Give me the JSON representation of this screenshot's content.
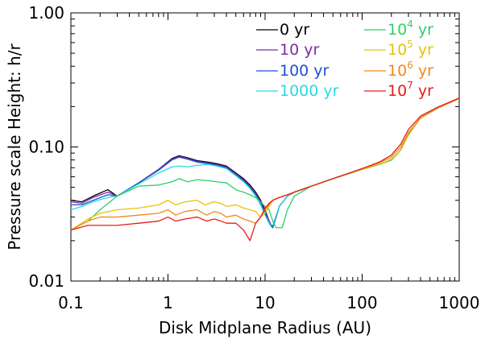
{
  "chart_data": {
    "type": "line",
    "title": "",
    "xlabel": "Disk Midplane Radius (AU)",
    "ylabel": "Pressure scale Height: h/r",
    "xscale": "log",
    "yscale": "log",
    "xlim": [
      0.1,
      1000
    ],
    "ylim": [
      0.01,
      1.0
    ],
    "x_ticks": [
      {
        "value": 0.1,
        "label": "0.1"
      },
      {
        "value": 1,
        "label": "1"
      },
      {
        "value": 10,
        "label": "10"
      },
      {
        "value": 100,
        "label": "100"
      },
      {
        "value": 1000,
        "label": "1000"
      }
    ],
    "y_ticks": [
      {
        "value": 0.01,
        "label": "0.01"
      },
      {
        "value": 0.1,
        "label": "0.10"
      },
      {
        "value": 1.0,
        "label": "1.00"
      }
    ],
    "grid": false,
    "legend_position": "top-right",
    "series": [
      {
        "name": "0 yr",
        "label_base": "0",
        "label_exp": "",
        "label_unit": " yr",
        "color": "#000000",
        "x": [
          0.1,
          0.13,
          0.17,
          0.24,
          0.3,
          0.5,
          0.8,
          1.1,
          1.3,
          1.6,
          2,
          2.6,
          3.2,
          4,
          5,
          6,
          7,
          8,
          9,
          10,
          11,
          12,
          14,
          17,
          20,
          30,
          50,
          100,
          150,
          200,
          250,
          300,
          400,
          600,
          1000
        ],
        "y": [
          0.04,
          0.039,
          0.043,
          0.048,
          0.043,
          0.054,
          0.068,
          0.082,
          0.086,
          0.083,
          0.079,
          0.077,
          0.075,
          0.072,
          0.064,
          0.058,
          0.052,
          0.046,
          0.04,
          0.034,
          0.028,
          0.025,
          0.036,
          0.043,
          0.046,
          0.051,
          0.058,
          0.068,
          0.074,
          0.08,
          0.095,
          0.125,
          0.165,
          0.195,
          0.23
        ]
      },
      {
        "name": "10 yr",
        "label_base": "10",
        "label_exp": "",
        "label_unit": " yr",
        "color": "#7b2ea0",
        "x": [
          0.1,
          0.13,
          0.17,
          0.24,
          0.3,
          0.5,
          0.8,
          1.1,
          1.3,
          1.6,
          2,
          2.6,
          3.2,
          4,
          5,
          6,
          7,
          8,
          9,
          10,
          11,
          12,
          14,
          17,
          20,
          30,
          50,
          100,
          150,
          200,
          250,
          300,
          400,
          600,
          1000
        ],
        "y": [
          0.039,
          0.038,
          0.042,
          0.046,
          0.043,
          0.054,
          0.068,
          0.081,
          0.085,
          0.082,
          0.078,
          0.076,
          0.074,
          0.071,
          0.063,
          0.057,
          0.051,
          0.045,
          0.039,
          0.033,
          0.028,
          0.025,
          0.036,
          0.043,
          0.046,
          0.051,
          0.058,
          0.068,
          0.074,
          0.08,
          0.095,
          0.125,
          0.165,
          0.195,
          0.23
        ]
      },
      {
        "name": "100 yr",
        "label_base": "100",
        "label_exp": "",
        "label_unit": " yr",
        "color": "#1f4fd8",
        "x": [
          0.1,
          0.13,
          0.17,
          0.24,
          0.3,
          0.5,
          0.8,
          1.1,
          1.3,
          1.6,
          2,
          2.6,
          3.2,
          4,
          5,
          6,
          7,
          8,
          9,
          10,
          11,
          12,
          14,
          17,
          20,
          30,
          50,
          100,
          150,
          200,
          250,
          300,
          400,
          600,
          1000
        ],
        "y": [
          0.037,
          0.037,
          0.04,
          0.044,
          0.043,
          0.054,
          0.067,
          0.08,
          0.084,
          0.081,
          0.077,
          0.075,
          0.073,
          0.07,
          0.062,
          0.056,
          0.05,
          0.044,
          0.038,
          0.032,
          0.027,
          0.025,
          0.036,
          0.043,
          0.046,
          0.051,
          0.058,
          0.068,
          0.074,
          0.08,
          0.095,
          0.125,
          0.165,
          0.195,
          0.23
        ]
      },
      {
        "name": "1000 yr",
        "label_base": "1000",
        "label_exp": "",
        "label_unit": " yr",
        "color": "#2ad8e8",
        "x": [
          0.1,
          0.13,
          0.17,
          0.24,
          0.3,
          0.5,
          0.8,
          1.1,
          1.3,
          1.6,
          2,
          2.6,
          3.2,
          4,
          5,
          6,
          7,
          8,
          9,
          10,
          11,
          12,
          14,
          17,
          20,
          30,
          50,
          100,
          150,
          200,
          250,
          300,
          400,
          600,
          1000
        ],
        "y": [
          0.034,
          0.036,
          0.039,
          0.042,
          0.043,
          0.053,
          0.064,
          0.071,
          0.072,
          0.071,
          0.073,
          0.074,
          0.072,
          0.069,
          0.061,
          0.055,
          0.049,
          0.043,
          0.037,
          0.031,
          0.027,
          0.026,
          0.036,
          0.043,
          0.046,
          0.051,
          0.058,
          0.068,
          0.074,
          0.08,
          0.095,
          0.125,
          0.165,
          0.195,
          0.23
        ]
      },
      {
        "name": "10^4 yr",
        "label_base": "10",
        "label_exp": "4",
        "label_unit": " yr",
        "color": "#2ecf6a",
        "x": [
          0.1,
          0.15,
          0.2,
          0.3,
          0.5,
          0.8,
          1.1,
          1.3,
          1.6,
          2,
          2.6,
          3.2,
          4,
          5,
          6,
          7,
          8,
          9,
          10,
          11,
          12,
          13,
          14,
          15,
          17,
          20,
          30,
          50,
          100,
          150,
          200,
          250,
          300,
          400,
          600,
          1000
        ],
        "y": [
          0.024,
          0.028,
          0.034,
          0.043,
          0.051,
          0.052,
          0.055,
          0.058,
          0.055,
          0.057,
          0.056,
          0.055,
          0.054,
          0.048,
          0.046,
          0.044,
          0.042,
          0.039,
          0.036,
          0.034,
          0.028,
          0.025,
          0.025,
          0.025,
          0.034,
          0.043,
          0.051,
          0.058,
          0.068,
          0.074,
          0.08,
          0.095,
          0.125,
          0.165,
          0.195,
          0.23
        ]
      },
      {
        "name": "10^5 yr",
        "label_base": "10",
        "label_exp": "5",
        "label_unit": " yr",
        "color": "#e8c20a",
        "x": [
          0.1,
          0.15,
          0.2,
          0.3,
          0.5,
          0.8,
          1.0,
          1.2,
          1.5,
          2,
          2.4,
          3,
          3.5,
          4,
          5,
          6,
          7,
          8,
          9,
          10,
          11,
          12,
          14,
          17,
          20,
          30,
          50,
          100,
          150,
          200,
          250,
          300,
          400,
          600,
          1000
        ],
        "y": [
          0.024,
          0.029,
          0.032,
          0.034,
          0.035,
          0.037,
          0.04,
          0.037,
          0.039,
          0.04,
          0.037,
          0.039,
          0.038,
          0.036,
          0.037,
          0.035,
          0.034,
          0.033,
          0.03,
          0.032,
          0.036,
          0.04,
          0.042,
          0.044,
          0.046,
          0.051,
          0.058,
          0.068,
          0.074,
          0.081,
          0.095,
          0.122,
          0.165,
          0.195,
          0.23
        ]
      },
      {
        "name": "10^6 yr",
        "label_base": "10",
        "label_exp": "6",
        "label_unit": " yr",
        "color": "#f08a18",
        "x": [
          0.1,
          0.15,
          0.2,
          0.3,
          0.5,
          0.8,
          1.0,
          1.2,
          1.5,
          2,
          2.5,
          3,
          3.5,
          4,
          5,
          6,
          7,
          8,
          9,
          10,
          11,
          12,
          14,
          17,
          20,
          30,
          50,
          100,
          150,
          200,
          250,
          300,
          400,
          600,
          1000
        ],
        "y": [
          0.024,
          0.028,
          0.03,
          0.03,
          0.031,
          0.032,
          0.034,
          0.031,
          0.033,
          0.034,
          0.031,
          0.033,
          0.032,
          0.03,
          0.031,
          0.029,
          0.028,
          0.027,
          0.03,
          0.034,
          0.037,
          0.04,
          0.042,
          0.044,
          0.046,
          0.051,
          0.058,
          0.069,
          0.076,
          0.084,
          0.1,
          0.128,
          0.165,
          0.195,
          0.23
        ]
      },
      {
        "name": "10^7 yr",
        "label_base": "10",
        "label_exp": "7",
        "label_unit": " yr",
        "color": "#e81c1c",
        "x": [
          0.1,
          0.15,
          0.2,
          0.3,
          0.5,
          0.8,
          1.0,
          1.2,
          1.5,
          2,
          2.5,
          3,
          3.5,
          4,
          5,
          6,
          7,
          8,
          9,
          10,
          11,
          12,
          14,
          17,
          20,
          30,
          50,
          100,
          150,
          200,
          250,
          300,
          400,
          600,
          1000
        ],
        "y": [
          0.024,
          0.026,
          0.026,
          0.026,
          0.027,
          0.028,
          0.03,
          0.028,
          0.029,
          0.03,
          0.028,
          0.029,
          0.028,
          0.027,
          0.027,
          0.024,
          0.02,
          0.027,
          0.03,
          0.035,
          0.038,
          0.04,
          0.042,
          0.044,
          0.046,
          0.051,
          0.058,
          0.069,
          0.077,
          0.087,
          0.105,
          0.135,
          0.17,
          0.198,
          0.232
        ]
      }
    ]
  }
}
